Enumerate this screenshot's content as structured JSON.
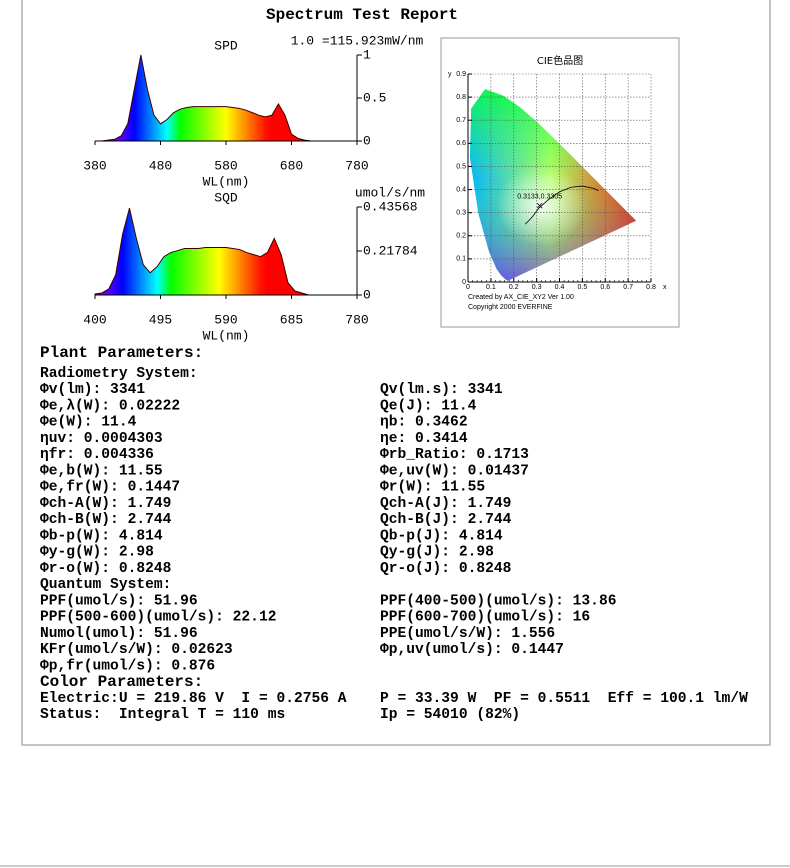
{
  "title": "Spectrum Test Report",
  "chart_data": [
    {
      "type": "area",
      "title": "SPD",
      "x_label": "WL(nm)",
      "unit_note": "1.0 =115.923mW/nm",
      "x": [
        380,
        390,
        400,
        410,
        420,
        430,
        440,
        450,
        460,
        470,
        480,
        490,
        500,
        510,
        520,
        530,
        540,
        550,
        560,
        570,
        580,
        590,
        600,
        610,
        620,
        630,
        640,
        650,
        660,
        670,
        680,
        690,
        700,
        710,
        720,
        730,
        740,
        750,
        760,
        770,
        780
      ],
      "values": [
        0,
        0,
        0.01,
        0.02,
        0.06,
        0.2,
        0.6,
        1.0,
        0.6,
        0.3,
        0.2,
        0.25,
        0.33,
        0.37,
        0.39,
        0.4,
        0.4,
        0.4,
        0.4,
        0.4,
        0.4,
        0.39,
        0.38,
        0.36,
        0.33,
        0.3,
        0.28,
        0.3,
        0.43,
        0.3,
        0.08,
        0.03,
        0.01,
        0,
        0,
        0,
        0,
        0,
        0,
        0,
        0
      ],
      "xlim": [
        380,
        780
      ],
      "xticks": [
        380,
        480,
        580,
        680,
        780
      ],
      "ylim": [
        0,
        1
      ],
      "yticks": [
        0,
        0.5,
        1
      ]
    },
    {
      "type": "area",
      "title": "SQD",
      "x_label": "WL(nm)",
      "unit_note": "umol/s/nm",
      "x": [
        400,
        410,
        420,
        430,
        440,
        450,
        460,
        470,
        480,
        490,
        500,
        510,
        520,
        530,
        540,
        550,
        560,
        570,
        580,
        590,
        600,
        610,
        620,
        630,
        640,
        650,
        660,
        670,
        680,
        690,
        700,
        710,
        720,
        730,
        740,
        750,
        760,
        770,
        780
      ],
      "values": [
        0.005,
        0.01,
        0.03,
        0.1,
        0.3,
        0.43,
        0.28,
        0.15,
        0.11,
        0.14,
        0.19,
        0.21,
        0.22,
        0.23,
        0.23,
        0.23,
        0.235,
        0.235,
        0.235,
        0.235,
        0.23,
        0.225,
        0.21,
        0.2,
        0.19,
        0.21,
        0.28,
        0.2,
        0.06,
        0.02,
        0.01,
        0,
        0,
        0,
        0,
        0,
        0,
        0,
        0
      ],
      "xlim": [
        400,
        780
      ],
      "xticks": [
        400,
        495,
        590,
        685,
        780
      ],
      "ylim": [
        0,
        0.43568
      ],
      "yticks": [
        0,
        0.21784,
        0.43568
      ]
    },
    {
      "type": "scatter",
      "title": "CIE色品图",
      "x_label": "x",
      "y_label": "y",
      "x": [
        0.3133
      ],
      "values": [
        0.3305
      ],
      "point_label": "0.3133,0.3305",
      "xlim": [
        0,
        0.8
      ],
      "xticks": [
        0,
        0.1,
        0.2,
        0.3,
        0.4,
        0.5,
        0.6,
        0.7,
        0.8
      ],
      "ylim": [
        0,
        0.9
      ],
      "yticks": [
        0,
        0.1,
        0.2,
        0.3,
        0.4,
        0.5,
        0.6,
        0.7,
        0.8,
        0.9
      ],
      "grid": true,
      "credits": [
        "Created by AX_CIE_XY2 Ver 1.00",
        "Copyright 2000 EVERFINE"
      ]
    }
  ],
  "plant_parameters": {
    "heading": "Plant Parameters:",
    "sections": [
      {
        "heading": "Radiometry System:",
        "rows": [
          [
            "Φv(lm): 3341",
            "Qv(lm.s): 3341"
          ],
          [
            "Φe,λ(W): 0.02222",
            "Qe(J): 11.4"
          ],
          [
            "Φe(W): 11.4",
            "ηb: 0.3462"
          ],
          [
            "ηuv: 0.0004303",
            "ηe: 0.3414"
          ],
          [
            "ηfr: 0.004336",
            "Φrb_Ratio: 0.1713"
          ],
          [
            "Φe,b(W): 11.55",
            "Φe,uv(W): 0.01437"
          ],
          [
            "Φe,fr(W): 0.1447",
            "Φr(W): 11.55"
          ],
          [
            "Φch-A(W): 1.749",
            "Qch-A(J): 1.749"
          ],
          [
            "Φch-B(W): 2.744",
            "Qch-B(J): 2.744"
          ],
          [
            "Φb-p(W): 4.814",
            "Qb-p(J): 4.814"
          ],
          [
            "Φy-g(W): 2.98",
            "Qy-g(J): 2.98"
          ],
          [
            "Φr-o(W): 0.8248",
            "Qr-o(J): 0.8248"
          ]
        ]
      },
      {
        "heading": "Quantum System:",
        "rows": [
          [
            "PPF(umol/s): 51.96",
            "PPF(400-500)(umol/s): 13.86"
          ],
          [
            "PPF(500-600)(umol/s): 22.12",
            "PPF(600-700)(umol/s): 16"
          ],
          [
            "Numol(umol): 51.96",
            "PPE(umol/s/W): 1.556"
          ],
          [
            "KFr(umol/s/W): 0.02623",
            "Φp,uv(umol/s): 0.1447"
          ],
          [
            "Φp,fr(umol/s): 0.876"
          ]
        ]
      }
    ]
  },
  "color_parameters": {
    "heading": "Color Parameters:",
    "rows": [
      [
        "Electric:U = 219.86 V  I = 0.2756 A",
        "P = 33.39 W  PF = 0.5511  Eff = 100.1 lm/W"
      ],
      [
        "Status:  Integral T = 110 ms",
        "Ip = 54010 (82%)"
      ]
    ]
  }
}
